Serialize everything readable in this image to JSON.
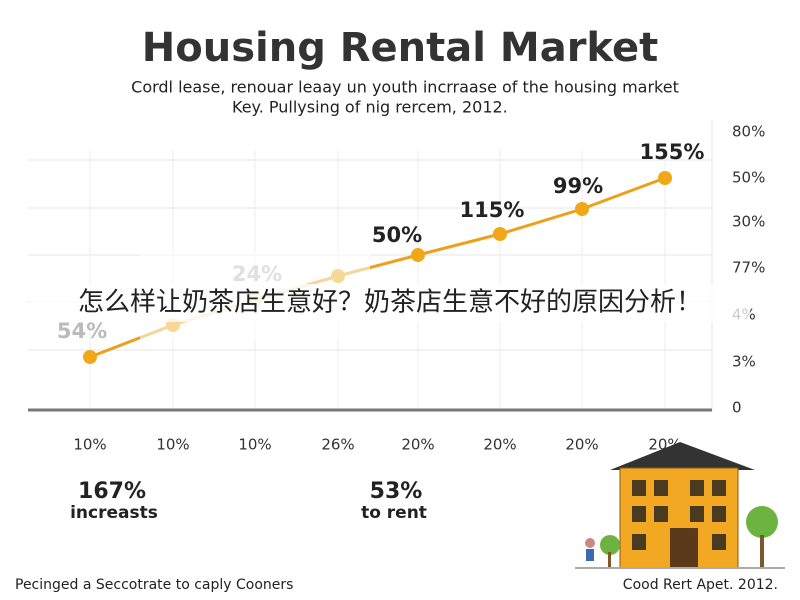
{
  "header": {
    "title": "Housing Rental Market",
    "subtitle": [
      "Cordl lease, renouar leaay un youth incrraase of the housing market",
      "Key. Pullysing of nig rercem, 2012."
    ]
  },
  "chart": {
    "point_labels": [
      "54%",
      "24%",
      "50%",
      "115%",
      "99%",
      "155%"
    ],
    "y_axis_labels": [
      "80%",
      "50%",
      "30%",
      "77%",
      "4%",
      "3%",
      "0"
    ],
    "x_axis_labels": [
      "10%",
      "10%",
      "10%",
      "26%",
      "20%",
      "20%",
      "20%",
      "20%"
    ]
  },
  "stats": [
    {
      "value": "167%",
      "label": "increasts"
    },
    {
      "value": "53%",
      "label": "to rent"
    }
  ],
  "footer": {
    "left": "Pecinged a Seccotrate to caply Cooners",
    "right": "Cood Rert Apet. 2012."
  },
  "overlay": "怎么样让奶茶店生意好？奶茶店生意不好的原因分析！"
}
